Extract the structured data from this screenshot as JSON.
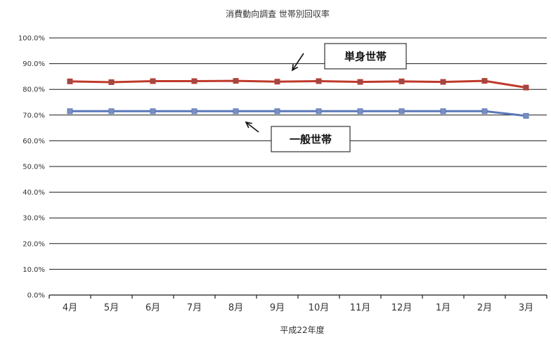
{
  "chart_data": {
    "type": "line",
    "title": "消費動向調査 世帯別回収率",
    "xlabel": "平成22年度",
    "ylabel": "",
    "categories": [
      "4月",
      "5月",
      "6月",
      "7月",
      "8月",
      "9月",
      "10月",
      "11月",
      "12月",
      "1月",
      "2月",
      "3月"
    ],
    "ylim": [
      0,
      100
    ],
    "yticks": [
      "0.0%",
      "10.0%",
      "20.0%",
      "30.0%",
      "40.0%",
      "50.0%",
      "60.0%",
      "70.0%",
      "80.0%",
      "90.0%",
      "100.0%"
    ],
    "grid": true,
    "series": [
      {
        "name": "単身世帯",
        "color": "#c0392b",
        "marker_color": "#9a4a4a",
        "values": [
          83.1,
          82.8,
          83.2,
          83.2,
          83.3,
          83.0,
          83.2,
          82.9,
          83.1,
          82.9,
          83.3,
          80.7
        ]
      },
      {
        "name": "一般世帯",
        "color": "#5a78b8",
        "marker_color": "#7a8fc0",
        "values": [
          71.5,
          71.5,
          71.5,
          71.5,
          71.5,
          71.5,
          71.5,
          71.5,
          71.5,
          71.5,
          71.5,
          69.7
        ]
      }
    ],
    "annotations": [
      {
        "text": "単身世帯",
        "series": 0
      },
      {
        "text": "一般世帯",
        "series": 1
      }
    ]
  }
}
